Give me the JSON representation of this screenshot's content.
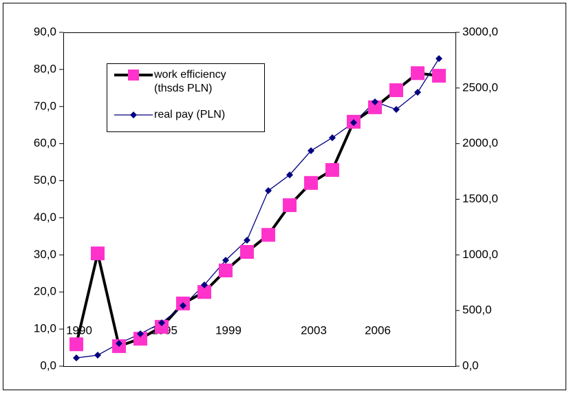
{
  "chart_data": {
    "type": "line",
    "categories": [
      "1990",
      null,
      null,
      null,
      "1995",
      null,
      null,
      "1999",
      null,
      null,
      null,
      "2003",
      null,
      null,
      "2006",
      null,
      null,
      null
    ],
    "series": [
      {
        "name": "work efficiency (thsds PLN)",
        "color": "#000000",
        "marker_color": "#ff33cc",
        "marker": "square",
        "axis": "y",
        "values": [
          5.9,
          30.4,
          5.4,
          7.4,
          10.6,
          16.9,
          20.0,
          25.8,
          30.8,
          35.4,
          43.4,
          49.4,
          52.9,
          65.9,
          69.8,
          74.4,
          79.0,
          78.3
        ]
      },
      {
        "name": "real pay (PLN)",
        "color": "#000080",
        "marker_color": "#000080",
        "marker": "diamond",
        "axis": "y2",
        "values": [
          74,
          99,
          204,
          291,
          390,
          544,
          730,
          952,
          1132,
          1577,
          1719,
          1936,
          2053,
          2189,
          2375,
          2307,
          2461,
          2764
        ]
      }
    ],
    "ylim": [
      0,
      90
    ],
    "yticks": [
      {
        "value": 0,
        "label": "0,0"
      },
      {
        "value": 10,
        "label": "10,0"
      },
      {
        "value": 20,
        "label": "20,0"
      },
      {
        "value": 30,
        "label": "30,0"
      },
      {
        "value": 40,
        "label": "40,0"
      },
      {
        "value": 50,
        "label": "50,0"
      },
      {
        "value": 60,
        "label": "60,0"
      },
      {
        "value": 70,
        "label": "70,0"
      },
      {
        "value": 80,
        "label": "80,0"
      },
      {
        "value": 90,
        "label": "90,0"
      }
    ],
    "y2lim": [
      0,
      3000
    ],
    "y2ticks": [
      {
        "value": 0,
        "label": "0,0"
      },
      {
        "value": 500,
        "label": "500,0"
      },
      {
        "value": 1000,
        "label": "1000,0"
      },
      {
        "value": 1500,
        "label": "1500,0"
      },
      {
        "value": 2000,
        "label": "2000,0"
      },
      {
        "value": 2500,
        "label": "2500,0"
      },
      {
        "value": 3000,
        "label": "3000,0"
      }
    ],
    "grid": false
  }
}
